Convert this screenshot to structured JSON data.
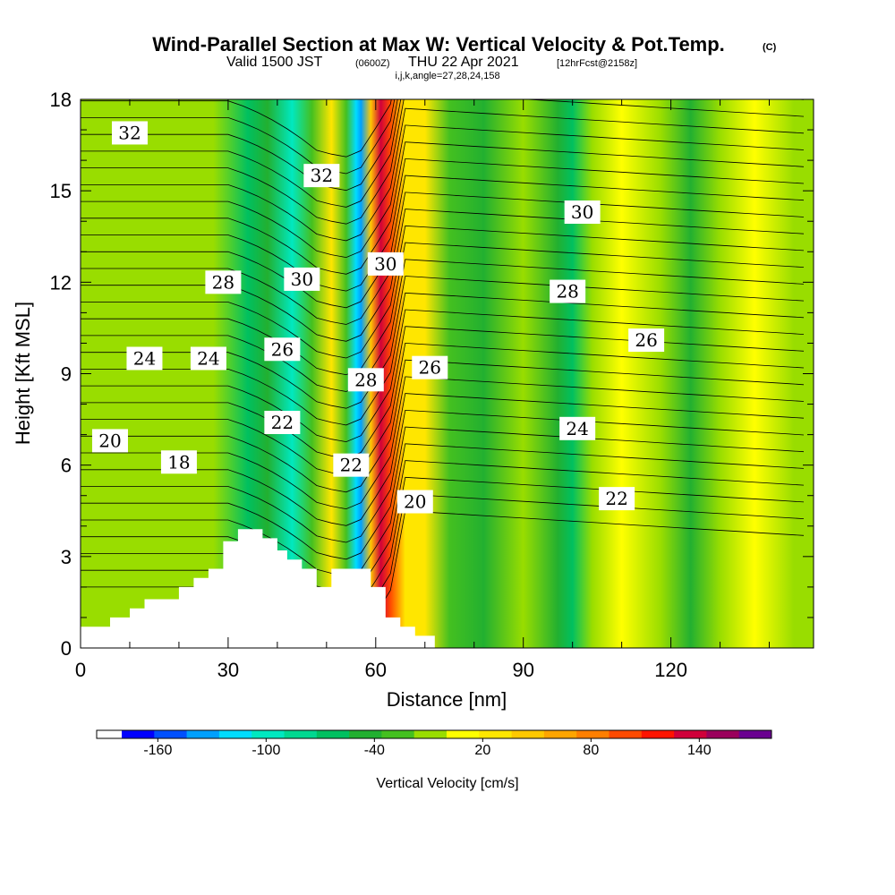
{
  "title": {
    "main": "Wind-Parallel Section at Max W: Vertical Velocity & Pot.Temp.",
    "copyright": "(C)",
    "sub_a": "Valid 1500 JST",
    "sub_b": "(0600Z)",
    "sub_c": "THU 22 Apr 2021",
    "sub_d": "[12hrFcst@2158z]",
    "line3": "i,j,k,angle=27,28,24,158"
  },
  "chart_data": {
    "type": "heatmap",
    "xlabel": "Distance [nm]",
    "ylabel": "Height [Kft MSL]",
    "xlim": [
      0,
      149
    ],
    "ylim": [
      0,
      18
    ],
    "x_ticks": [
      0,
      30,
      60,
      90,
      120
    ],
    "y_ticks": [
      0,
      3,
      6,
      9,
      12,
      15,
      18
    ],
    "grid": false,
    "colorbar": {
      "title": "Vertical Velocity [cm/s]",
      "min": -180,
      "max": 180,
      "step": 20,
      "tick_labels": [
        "-160",
        "-100",
        "-40",
        "20",
        "80",
        "140"
      ],
      "tick_values": [
        -160,
        -100,
        -40,
        20,
        80,
        140
      ],
      "colors": [
        "#0000ff",
        "#0050ff",
        "#00a0ff",
        "#00dcff",
        "#00e8c0",
        "#00d890",
        "#00c060",
        "#22b030",
        "#44c020",
        "#99dd00",
        "#ffff00",
        "#ffe600",
        "#ffc800",
        "#ffa500",
        "#ff7f00",
        "#ff4a00",
        "#ff1400",
        "#d0003a",
        "#9a005c",
        "#6a0090"
      ]
    },
    "velocity_bands": [
      {
        "x": 5,
        "value": 0
      },
      {
        "x": 18,
        "value": 10
      },
      {
        "x": 27,
        "value": 0
      },
      {
        "x": 34,
        "value": -60
      },
      {
        "x": 38,
        "value": -30
      },
      {
        "x": 43,
        "value": -90
      },
      {
        "x": 47,
        "value": -20
      },
      {
        "x": 51,
        "value": 40
      },
      {
        "x": 54,
        "value": -20
      },
      {
        "x": 56,
        "value": -110
      },
      {
        "x": 57,
        "value": -140
      },
      {
        "x": 59,
        "value": 70
      },
      {
        "x": 61,
        "value": 160
      },
      {
        "x": 63,
        "value": 120
      },
      {
        "x": 66,
        "value": 40
      },
      {
        "x": 70,
        "value": 40
      },
      {
        "x": 75,
        "value": -10
      },
      {
        "x": 82,
        "value": -40
      },
      {
        "x": 90,
        "value": 10
      },
      {
        "x": 97,
        "value": -40
      },
      {
        "x": 100,
        "value": -60
      },
      {
        "x": 104,
        "value": 0
      },
      {
        "x": 110,
        "value": 30
      },
      {
        "x": 118,
        "value": 0
      },
      {
        "x": 124,
        "value": -30
      },
      {
        "x": 130,
        "value": 10
      },
      {
        "x": 137,
        "value": 30
      },
      {
        "x": 145,
        "value": 0
      }
    ],
    "terrain": [
      [
        0,
        0.7
      ],
      [
        6,
        0.7
      ],
      [
        6,
        1.0
      ],
      [
        10,
        1.0
      ],
      [
        10,
        1.3
      ],
      [
        13,
        1.3
      ],
      [
        13,
        1.6
      ],
      [
        20,
        1.6
      ],
      [
        20,
        2.0
      ],
      [
        23,
        2.0
      ],
      [
        23,
        2.3
      ],
      [
        26,
        2.3
      ],
      [
        26,
        2.6
      ],
      [
        29,
        2.6
      ],
      [
        29,
        3.5
      ],
      [
        32,
        3.5
      ],
      [
        32,
        3.9
      ],
      [
        37,
        3.9
      ],
      [
        37,
        3.6
      ],
      [
        40,
        3.6
      ],
      [
        40,
        3.2
      ],
      [
        42,
        3.2
      ],
      [
        42,
        2.9
      ],
      [
        45,
        2.9
      ],
      [
        45,
        2.6
      ],
      [
        48,
        2.6
      ],
      [
        48,
        2.0
      ],
      [
        51,
        2.0
      ],
      [
        51,
        2.6
      ],
      [
        59,
        2.6
      ],
      [
        59,
        2.0
      ],
      [
        62,
        2.0
      ],
      [
        62,
        1.0
      ],
      [
        65,
        1.0
      ],
      [
        65,
        0.7
      ],
      [
        68,
        0.7
      ],
      [
        68,
        0.4
      ],
      [
        72,
        0.4
      ],
      [
        72,
        0
      ]
    ],
    "theta_contour_labels": [
      {
        "text": "32",
        "x": 10,
        "y": 16.9
      },
      {
        "text": "32",
        "x": 49,
        "y": 15.5
      },
      {
        "text": "30",
        "x": 102,
        "y": 14.3
      },
      {
        "text": "30",
        "x": 62,
        "y": 12.6
      },
      {
        "text": "30",
        "x": 45,
        "y": 12.1
      },
      {
        "text": "28",
        "x": 29,
        "y": 12.0
      },
      {
        "text": "28",
        "x": 99,
        "y": 11.7
      },
      {
        "text": "26",
        "x": 115,
        "y": 10.1
      },
      {
        "text": "26",
        "x": 41,
        "y": 9.8
      },
      {
        "text": "26",
        "x": 71,
        "y": 9.2
      },
      {
        "text": "24",
        "x": 13,
        "y": 9.5
      },
      {
        "text": "24",
        "x": 26,
        "y": 9.5
      },
      {
        "text": "28",
        "x": 58,
        "y": 8.8
      },
      {
        "text": "24",
        "x": 101,
        "y": 7.2
      },
      {
        "text": "22",
        "x": 41,
        "y": 7.4
      },
      {
        "text": "20",
        "x": 6,
        "y": 6.8
      },
      {
        "text": "18",
        "x": 20,
        "y": 6.1
      },
      {
        "text": "22",
        "x": 55,
        "y": 6.0
      },
      {
        "text": "20",
        "x": 68,
        "y": 4.8
      },
      {
        "text": "22",
        "x": 109,
        "y": 4.9
      }
    ]
  }
}
